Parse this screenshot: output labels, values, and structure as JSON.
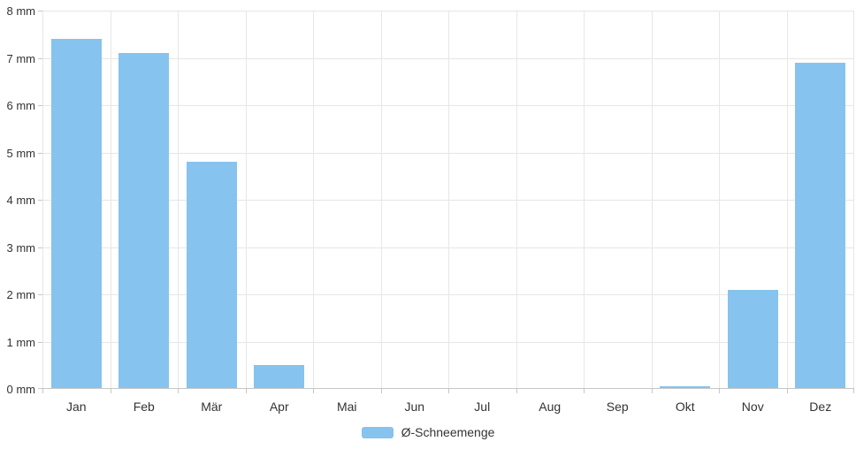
{
  "chart_data": {
    "type": "bar",
    "title": "",
    "xlabel": "",
    "ylabel": "",
    "categories": [
      "Jan",
      "Feb",
      "Mär",
      "Apr",
      "Mai",
      "Jun",
      "Jul",
      "Aug",
      "Sep",
      "Okt",
      "Nov",
      "Dez"
    ],
    "series": [
      {
        "name": "Ø-Schneemenge",
        "color": "#86c3ee",
        "values": [
          7.4,
          7.1,
          4.8,
          0.5,
          0.02,
          0,
          0,
          0,
          0,
          0.05,
          2.1,
          6.9
        ]
      }
    ],
    "ylim": [
      0,
      8
    ],
    "ytick_step": 1,
    "ytick_labels": [
      "0 mm",
      "1 mm",
      "2 mm",
      "3 mm",
      "4 mm",
      "5 mm",
      "6 mm",
      "7 mm",
      "8 mm"
    ],
    "grid": true,
    "legend_position": "bottom-center"
  },
  "legend": {
    "items": [
      {
        "label": "Ø-Schneemenge",
        "color": "#86c3ee"
      }
    ]
  },
  "colors": {
    "background": "#ffffff",
    "bar": "#86c3ee",
    "gridline": "#e6e6e6",
    "axis_line": "#c6c6c6",
    "text": "#333333"
  }
}
